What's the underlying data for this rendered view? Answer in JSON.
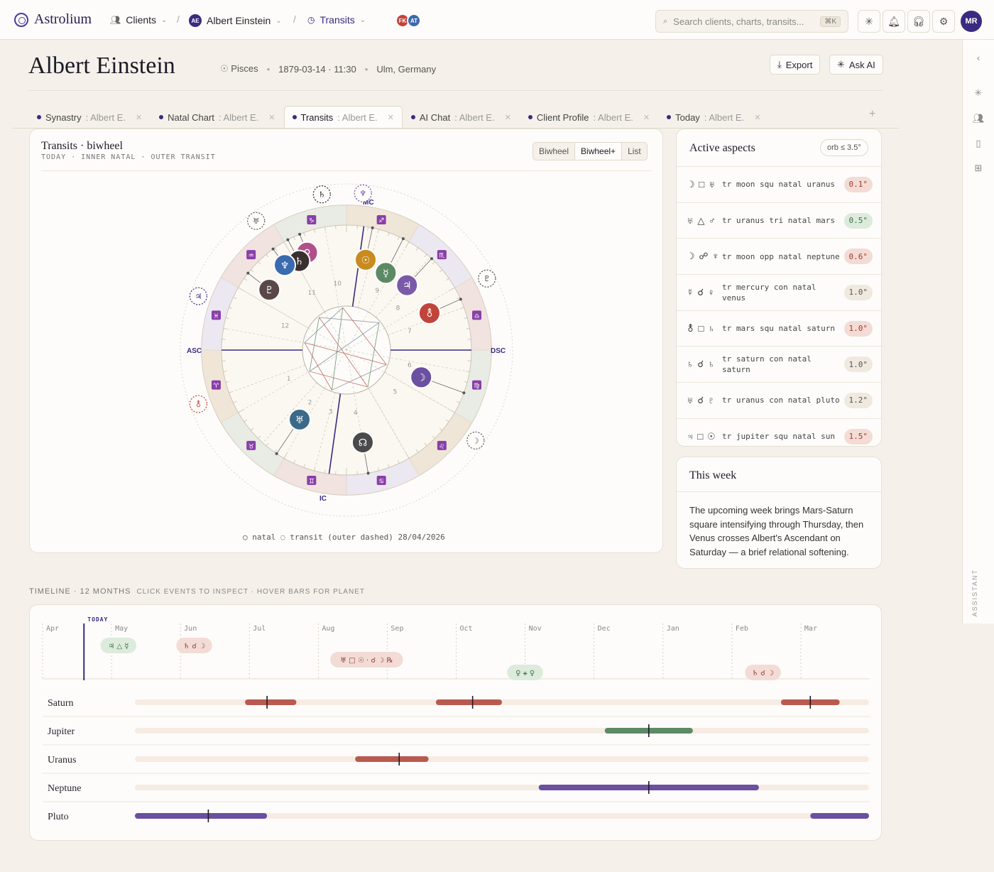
{
  "nav": {
    "brand": "Astrolium",
    "clients": "Clients",
    "client_initials": "AE",
    "client_name": "Albert Einstein",
    "section": "Transits",
    "presence": [
      {
        "initials": "FK",
        "color": "#c0443a"
      },
      {
        "initials": "AT",
        "color": "#3a6ab0"
      }
    ],
    "search_placeholder": "Search clients, charts, transits...",
    "search_kbd": "⌘K",
    "user_initials": "MR"
  },
  "header": {
    "title": "Albert Einstein",
    "sign": "Pisces",
    "datetime": "1879-03-14 · 11:30",
    "place": "Ulm, Germany",
    "export_label": "Export",
    "ask_ai_label": "Ask AI"
  },
  "tabs": [
    {
      "name": "Synastry",
      "sub": "Albert E.",
      "active": false
    },
    {
      "name": "Natal Chart",
      "sub": "Albert E.",
      "active": false
    },
    {
      "name": "Transits",
      "sub": "Albert E.",
      "active": true
    },
    {
      "name": "AI Chat",
      "sub": "Albert E.",
      "active": false
    },
    {
      "name": "Client Profile",
      "sub": "Albert E.",
      "active": false
    },
    {
      "name": "Today",
      "sub": "Albert E.",
      "active": false
    }
  ],
  "wheel": {
    "title": "Transits · biwheel",
    "subtitle": "TODAY · INNER NATAL · OUTER TRANSIT",
    "views": [
      "Biwheel",
      "Biwheel+",
      "List"
    ],
    "active_view": "Biwheel+",
    "angles": {
      "asc": "ASC",
      "dsc": "DSC",
      "mc": "MC",
      "ic": "IC"
    },
    "legend": "○ natal  ◌ transit (outer dashed)  28/04/2026"
  },
  "aspects": {
    "title": "Active aspects",
    "orb_filter": "orb ≤ 3.5°",
    "rows": [
      {
        "symbols": "☽ □ ♅",
        "text": "tr moon squ natal uranus",
        "orb": "0.1°",
        "tone": "hard"
      },
      {
        "symbols": "♅ △ ♂",
        "text": "tr uranus tri natal mars",
        "orb": "0.5°",
        "tone": "soft"
      },
      {
        "symbols": "☽ ☍ ♆",
        "text": "tr moon opp natal neptune",
        "orb": "0.6°",
        "tone": "hard"
      },
      {
        "symbols": "☿ ☌ ♀",
        "text": "tr mercury con natal venus",
        "orb": "1.0°",
        "tone": "neutral"
      },
      {
        "symbols": "⚨ □ ♄",
        "text": "tr mars squ natal saturn",
        "orb": "1.0°",
        "tone": "hard"
      },
      {
        "symbols": "♄ ☌ ♄",
        "text": "tr saturn con natal saturn",
        "orb": "1.0°",
        "tone": "neutral"
      },
      {
        "symbols": "♅ ☌ ♇",
        "text": "tr uranus con natal pluto",
        "orb": "1.2°",
        "tone": "neutral"
      },
      {
        "symbols": "♃ □ ☉",
        "text": "tr jupiter squ natal sun",
        "orb": "1.5°",
        "tone": "hard"
      }
    ]
  },
  "week": {
    "title": "This week",
    "text": "The upcoming week brings Mars-Saturn square intensifying through Thursday, then Venus crosses Albert's Ascendant on Saturday — a brief relational softening."
  },
  "timeline": {
    "label": "TIMELINE · 12 MONTHS",
    "hint": "CLICK EVENTS TO INSPECT · HOVER BARS FOR PLANET",
    "today_label": "TODAY",
    "today_fraction": 0.05,
    "months": [
      "Apr",
      "May",
      "Jun",
      "Jul",
      "Aug",
      "Sep",
      "Oct",
      "Nov",
      "Dec",
      "Jan",
      "Feb",
      "Mar"
    ],
    "events": [
      {
        "label": "♃ △ ☿",
        "month_pos": 1.1,
        "lane": 0,
        "tone": "soft"
      },
      {
        "label": "♄ ☌ ☽",
        "month_pos": 2.2,
        "lane": 0,
        "tone": "hard"
      },
      {
        "label": "♅ □ ☉ · ☌ ☽ ℞",
        "month_pos": 4.7,
        "lane": 1,
        "tone": "hard"
      },
      {
        "label": "♀ ⚹ ♀",
        "month_pos": 7.0,
        "lane": 2,
        "tone": "soft"
      },
      {
        "label": "♄ ☌ ☽",
        "month_pos": 10.45,
        "lane": 2,
        "tone": "hard"
      }
    ],
    "rows": [
      {
        "planet": "Saturn",
        "segments": [
          {
            "start": 0.15,
            "end": 0.22,
            "peak": 0.18,
            "tone": "hard"
          },
          {
            "start": 0.41,
            "end": 0.5,
            "peak": 0.46,
            "tone": "hard"
          },
          {
            "start": 0.88,
            "end": 0.96,
            "peak": 0.92,
            "tone": "hard"
          }
        ]
      },
      {
        "planet": "Jupiter",
        "segments": [
          {
            "start": 0.64,
            "end": 0.76,
            "peak": 0.7,
            "tone": "soft"
          }
        ]
      },
      {
        "planet": "Uranus",
        "segments": [
          {
            "start": 0.3,
            "end": 0.4,
            "peak": 0.36,
            "tone": "hard"
          }
        ]
      },
      {
        "planet": "Neptune",
        "segments": [
          {
            "start": 0.55,
            "end": 0.85,
            "peak": 0.7,
            "tone": "mystic"
          }
        ]
      },
      {
        "planet": "Pluto",
        "segments": [
          {
            "start": 0.0,
            "end": 0.18,
            "peak": 0.1,
            "tone": "mystic"
          },
          {
            "start": 0.92,
            "end": 1.0,
            "peak": null,
            "tone": "mystic"
          }
        ]
      }
    ]
  },
  "colors": {
    "accent": "#3a2a80",
    "hard": "#b95a4e",
    "hard_bg": "#f3dcd6",
    "soft": "#5d8a64",
    "soft_bg": "#dcebdc",
    "mystic": "#6b4fa0",
    "neutral_bg": "#efe9df"
  },
  "rail": {
    "label": "ASSISTANT"
  }
}
